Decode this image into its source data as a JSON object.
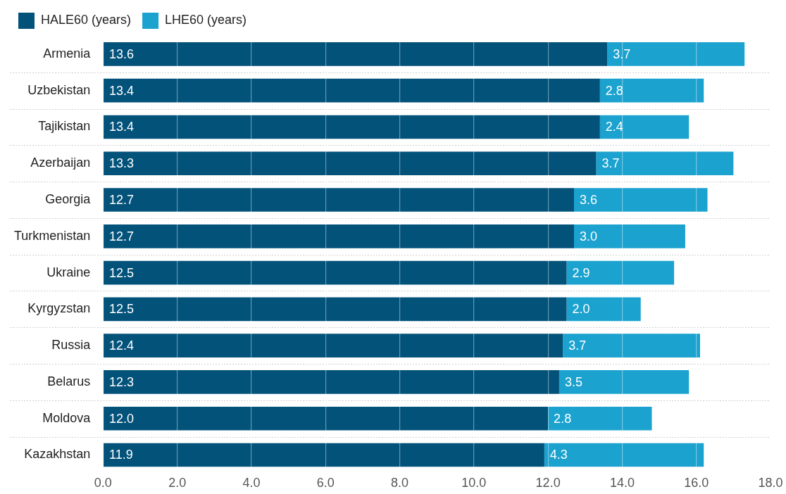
{
  "chart_data": {
    "type": "bar",
    "orientation": "horizontal",
    "stacked": true,
    "legend": "top left",
    "grid": true,
    "categories": [
      "Armenia",
      "Uzbekistan",
      "Tajikistan",
      "Azerbaijan",
      "Georgia",
      "Turkmenistan",
      "Ukraine",
      "Kyrgyzstan",
      "Russia",
      "Belarus",
      "Moldova",
      "Kazakhstan"
    ],
    "series": [
      {
        "name": "HALE60 (years)",
        "color": "#02527a",
        "values": [
          13.6,
          13.4,
          13.4,
          13.3,
          12.7,
          12.7,
          12.5,
          12.5,
          12.4,
          12.3,
          12.0,
          11.9
        ],
        "value_labels": [
          "13.6",
          "13.4",
          "13.4",
          "13.3",
          "12.7",
          "12.7",
          "12.5",
          "12.5",
          "12.4",
          "12.3",
          "12.0",
          "11.9"
        ]
      },
      {
        "name": "LHE60 (years)",
        "color": "#1ba2cf",
        "values": [
          3.7,
          2.8,
          2.4,
          3.7,
          3.6,
          3.0,
          2.9,
          2.0,
          3.7,
          3.5,
          2.8,
          4.3
        ],
        "value_labels": [
          "3.7",
          "2.8",
          "2.4",
          "3.7",
          "3.6",
          "3.0",
          "2.9",
          "2.0",
          "3.7",
          "3.5",
          "2.8",
          "4.3"
        ]
      }
    ],
    "xlim": [
      0,
      18
    ],
    "xticks": [
      {
        "value": 0,
        "label": "0.0"
      },
      {
        "value": 2,
        "label": "2.0"
      },
      {
        "value": 4,
        "label": "4.0"
      },
      {
        "value": 6,
        "label": "6.0"
      },
      {
        "value": 8,
        "label": "8.0"
      },
      {
        "value": 10,
        "label": "10.0"
      },
      {
        "value": 12,
        "label": "12.0"
      },
      {
        "value": 14,
        "label": "14.0"
      },
      {
        "value": 16,
        "label": "16.0"
      },
      {
        "value": 18,
        "label": "18.0"
      }
    ]
  }
}
